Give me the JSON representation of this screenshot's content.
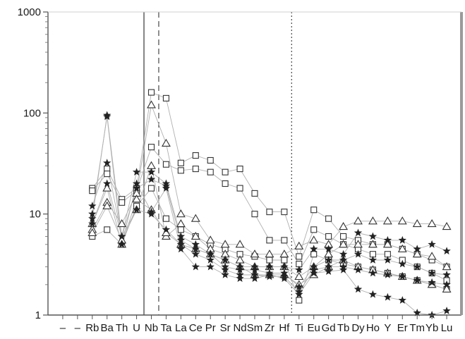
{
  "chart_data": {
    "type": "line",
    "yscale": "log",
    "ylim": [
      1,
      1000
    ],
    "y_tick_labels": [
      "1",
      "10",
      "100",
      "1000"
    ],
    "categories": [
      "–",
      "–",
      "Rb",
      "Ba",
      "Th",
      "U",
      "Nb",
      "Ta",
      "La",
      "Ce",
      "Pr",
      "Sr",
      "Nd",
      "Sm",
      "Zr",
      "Hf",
      "Ti",
      "Eu",
      "Gd",
      "Tb",
      "Dy",
      "Ho",
      "Y",
      "Er",
      "Tm",
      "Yb",
      "Lu"
    ],
    "x_label_positions": [
      1,
      2,
      3,
      4,
      5,
      6,
      7,
      8,
      9,
      10,
      11,
      12,
      13,
      14,
      15,
      16,
      17,
      18,
      19,
      20,
      21,
      22,
      23,
      24,
      25,
      26,
      27
    ],
    "xlim": [
      0,
      28
    ],
    "separators": [
      {
        "x": 6.5,
        "style": "solid"
      },
      {
        "x": 7.5,
        "style": "dashed"
      },
      {
        "x": 16.5,
        "style": "dotted"
      }
    ],
    "series": [
      {
        "marker": "square",
        "x": [
          3,
          4,
          5,
          6,
          7,
          8,
          9,
          10,
          11,
          12,
          13,
          14,
          15,
          16,
          17,
          18,
          19,
          20,
          21,
          22,
          23,
          24,
          25,
          26,
          27
        ],
        "values": [
          18,
          28,
          14,
          18,
          160,
          140,
          32,
          38,
          34,
          26,
          28,
          16,
          10.5,
          10.5,
          3.8,
          11,
          9,
          6,
          5.5,
          5,
          5,
          4.5,
          4,
          3.5,
          3
        ]
      },
      {
        "marker": "square",
        "x": [
          3,
          4,
          5,
          6,
          7,
          8,
          9,
          10,
          11,
          12,
          13,
          14,
          15,
          16,
          17,
          18,
          19,
          20,
          21,
          22,
          23,
          24,
          25,
          26,
          27
        ],
        "values": [
          17,
          25,
          13,
          17,
          46,
          31,
          27,
          28,
          26,
          20,
          18,
          10,
          5.5,
          5.5,
          3.2,
          7,
          6,
          5,
          4.5,
          4,
          4,
          3.5,
          3,
          2.6,
          2.2
        ]
      },
      {
        "marker": "square",
        "x": [
          3,
          4,
          5,
          6,
          7,
          8,
          9,
          10,
          11,
          12,
          13,
          14,
          15,
          16,
          17,
          18,
          19,
          20,
          21,
          22,
          23,
          24,
          25,
          26,
          27
        ],
        "values": [
          6,
          7,
          5,
          12,
          18,
          9,
          7,
          6,
          5,
          4.5,
          4,
          3.8,
          3.5,
          3.5,
          1.4,
          4,
          3.5,
          3.2,
          3,
          2.8,
          2.6,
          2.4,
          2.2,
          2,
          1.8
        ]
      },
      {
        "marker": "triangle",
        "x": [
          3,
          4,
          5,
          6,
          7,
          8,
          9,
          10,
          11,
          12,
          13,
          14,
          15,
          16,
          17,
          18,
          19,
          20,
          21,
          22,
          23,
          24,
          25,
          26,
          27
        ],
        "values": [
          7,
          13,
          8,
          16,
          120,
          50,
          10,
          9,
          5.5,
          5,
          5,
          4,
          4,
          4,
          4.8,
          5.5,
          5,
          7.5,
          8.5,
          8.5,
          8.5,
          8.5,
          8,
          8,
          7.5
        ]
      },
      {
        "marker": "triangle",
        "x": [
          3,
          4,
          5,
          6,
          7,
          8,
          9,
          10,
          11,
          12,
          13,
          14,
          15,
          16,
          17,
          18,
          19,
          20,
          21,
          22,
          23,
          24,
          25,
          26,
          27
        ],
        "values": [
          6.5,
          12,
          5.5,
          11,
          30,
          6,
          8,
          6,
          4.5,
          4,
          3.5,
          3,
          3,
          3,
          2.4,
          3,
          4,
          5,
          5,
          5,
          5,
          4.5,
          4,
          3.8,
          3
        ]
      },
      {
        "marker": "triangle",
        "x": [
          3,
          4,
          5,
          6,
          7,
          8,
          9,
          10,
          11,
          12,
          13,
          14,
          15,
          16,
          17,
          18,
          19,
          20,
          21,
          22,
          23,
          24,
          25,
          26,
          27
        ],
        "values": [
          8,
          18,
          5,
          14,
          11,
          6.5,
          5,
          4.5,
          4,
          3.5,
          3,
          2.5,
          2.5,
          2.5,
          2,
          2.5,
          3,
          3.5,
          3,
          2.8,
          2.6,
          2.4,
          2.2,
          2,
          1.8
        ]
      },
      {
        "marker": "star",
        "x": [
          3,
          4,
          5,
          6,
          7,
          8,
          9,
          10,
          11,
          12,
          13,
          14,
          15,
          16,
          17,
          18,
          19,
          20,
          21,
          22,
          23,
          24,
          25,
          26,
          27
        ],
        "values": [
          9,
          95,
          6,
          26,
          26,
          20,
          6,
          5,
          4,
          3.5,
          3,
          3,
          3,
          3,
          2.8,
          4.5,
          4.5,
          4,
          6.5,
          6,
          5.5,
          5.5,
          4.5,
          5,
          4.3
        ]
      },
      {
        "marker": "star",
        "x": [
          3,
          4,
          5,
          6,
          7,
          8,
          9,
          10,
          11,
          12,
          13,
          14,
          15,
          16,
          17,
          18,
          19,
          20,
          21,
          22,
          23,
          24,
          25,
          26,
          27
        ],
        "values": [
          12,
          32,
          6,
          18,
          22,
          19,
          5.5,
          4.5,
          4,
          3,
          2.8,
          2.8,
          2.6,
          2.6,
          1.9,
          3,
          3.5,
          3.5,
          4,
          3.5,
          3.5,
          3.2,
          3,
          2.6,
          2.5
        ]
      },
      {
        "marker": "star",
        "x": [
          3,
          4,
          5,
          6,
          7,
          8,
          9,
          10,
          11,
          12,
          13,
          14,
          15,
          16,
          17,
          18,
          19,
          20,
          21,
          22,
          23,
          24,
          25,
          26,
          27
        ],
        "values": [
          8,
          20,
          6,
          11,
          10,
          7,
          5,
          4,
          3.5,
          2.8,
          2.5,
          2.5,
          2.4,
          2.4,
          1.7,
          2.8,
          3,
          3,
          2.8,
          2.6,
          2.5,
          2.4,
          2.2,
          2.1,
          2
        ]
      },
      {
        "marker": "star",
        "x": [
          3,
          4,
          5,
          6,
          7,
          8,
          9,
          10,
          11,
          12,
          13,
          14,
          15,
          16,
          17,
          18,
          19,
          20,
          21,
          22,
          23,
          24,
          25,
          26,
          27
        ],
        "values": [
          10,
          92,
          5,
          20,
          10.5,
          18,
          4.5,
          3,
          3,
          2.5,
          2.3,
          2.3,
          2.5,
          2.3,
          1.6,
          2.6,
          2.7,
          2.8,
          1.8,
          1.6,
          1.5,
          1.4,
          1.05,
          1.0,
          1.1
        ]
      }
    ]
  }
}
